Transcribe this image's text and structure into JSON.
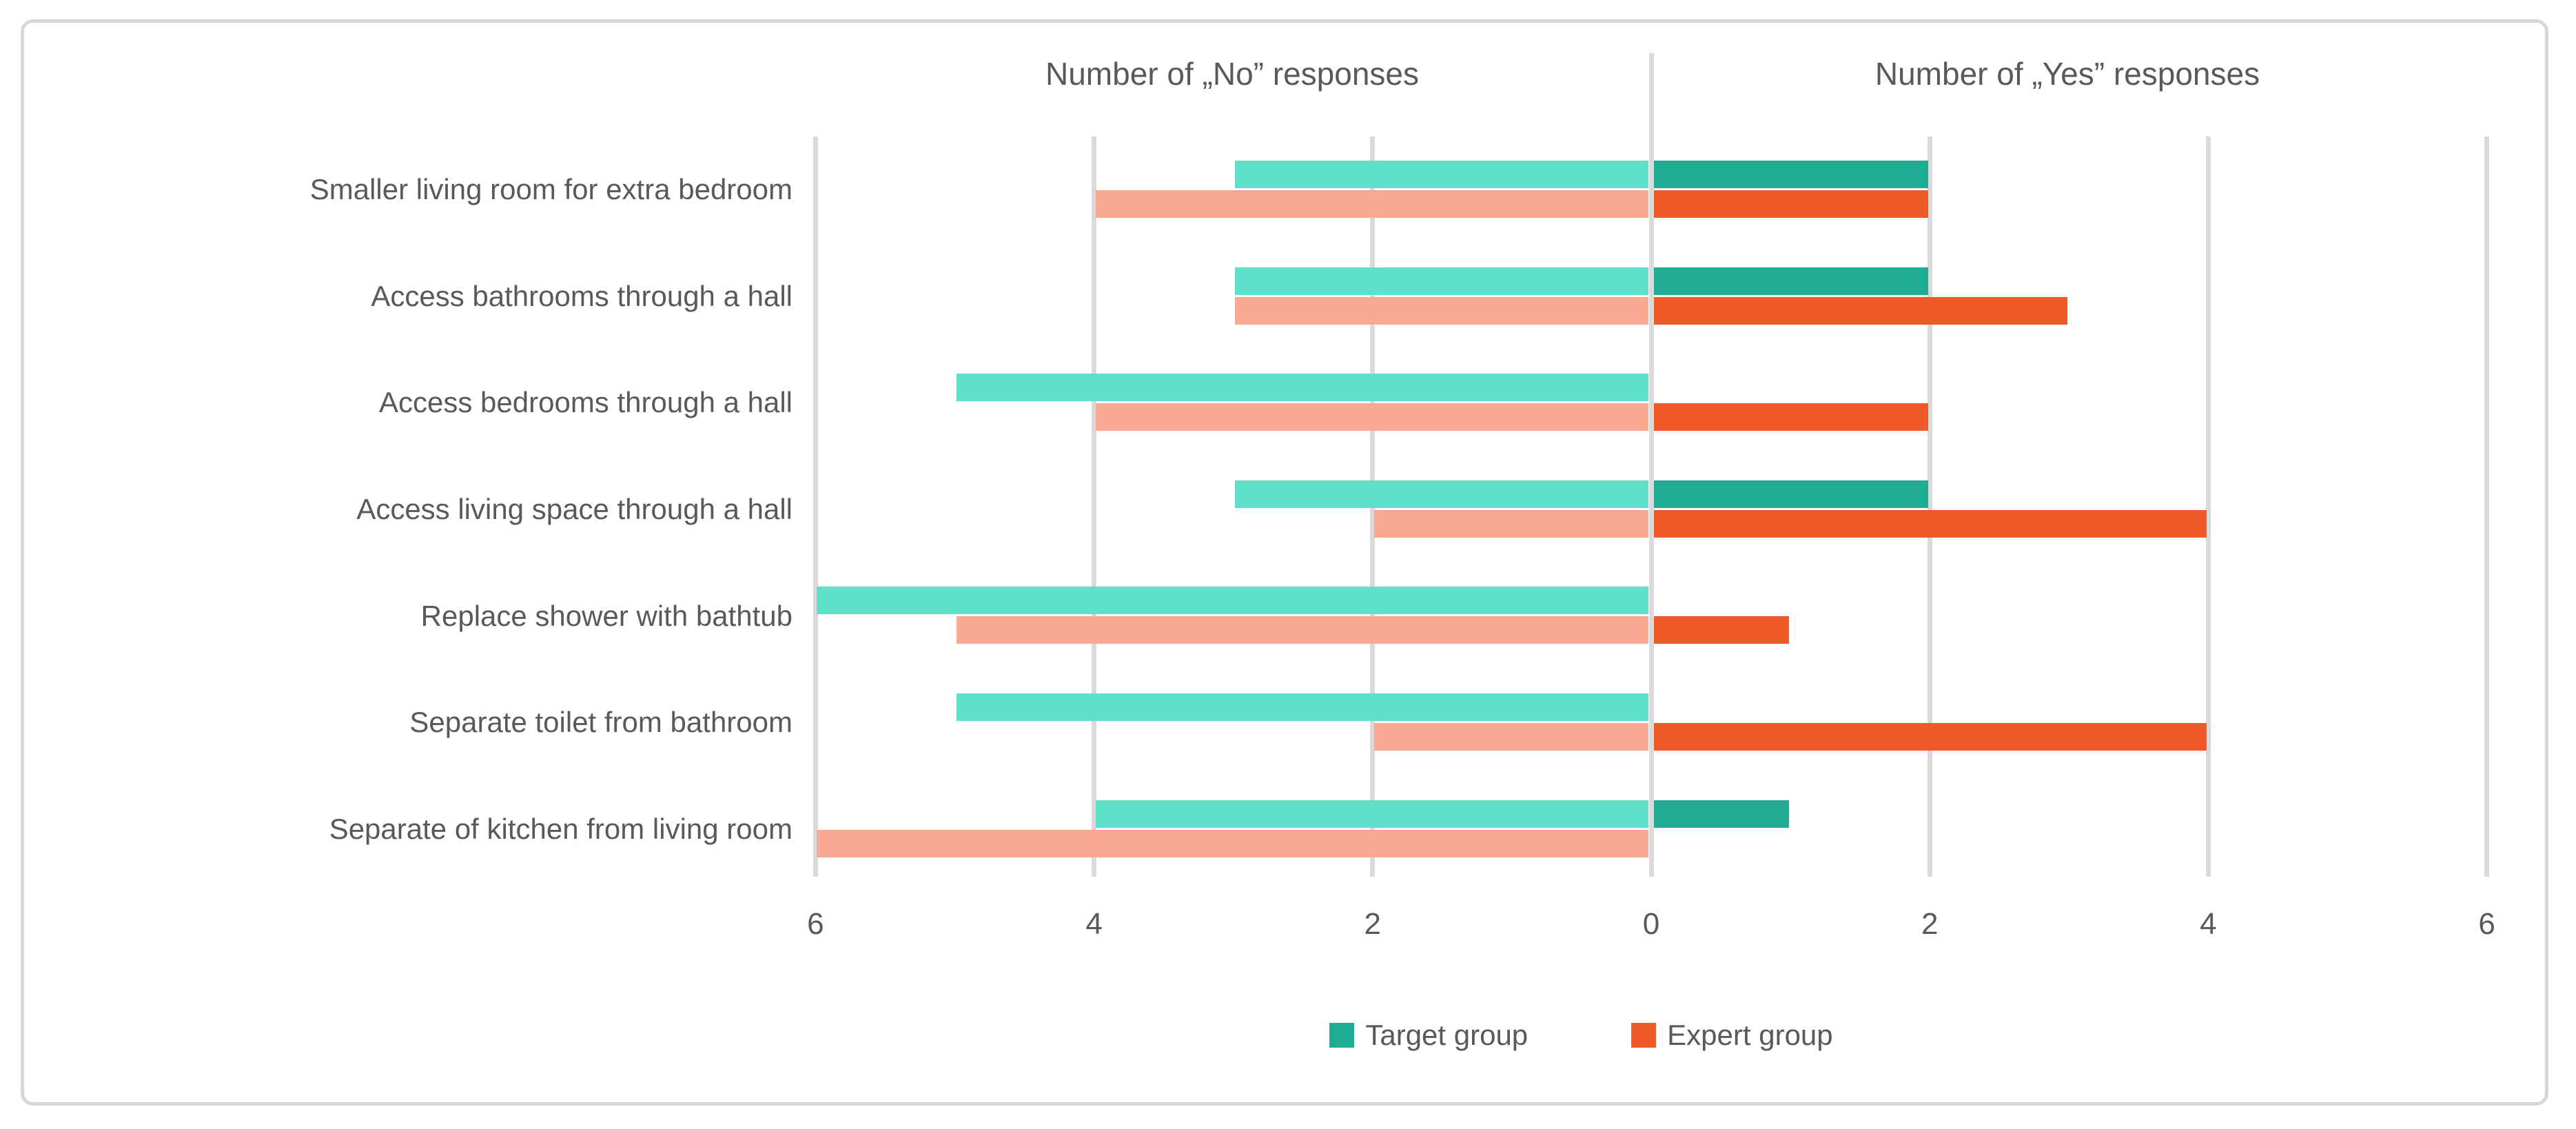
{
  "chart_data": {
    "type": "bar",
    "orientation": "horizontal-diverging",
    "title": "",
    "section_titles": {
      "left": "Number of „No” responses",
      "right": "Number of „Yes” responses"
    },
    "categories": [
      "Smaller living room for extra bedroom",
      "Access bathrooms through a hall",
      "Access bedrooms through a hall",
      "Access living space through a hall",
      "Replace shower with bathtub",
      "Separate toilet from bathroom",
      "Separate of kitchen from living room"
    ],
    "series": [
      {
        "key": "target-no",
        "name": "Target group",
        "response": "No",
        "side": "left",
        "color": "#5DE2C9",
        "values": [
          3,
          3,
          5,
          3,
          6,
          5,
          4
        ]
      },
      {
        "key": "expert-no",
        "name": "Expert group",
        "response": "No",
        "side": "left",
        "color": "#F7A993",
        "values": [
          4,
          3,
          4,
          2,
          5,
          2,
          6
        ]
      },
      {
        "key": "target-yes",
        "name": "Target group",
        "response": "Yes",
        "side": "right",
        "color": "#1EAC92",
        "values": [
          2,
          2,
          0,
          2,
          0,
          0,
          1
        ]
      },
      {
        "key": "expert-yes",
        "name": "Expert group",
        "response": "Yes",
        "side": "right",
        "color": "#F05A28",
        "values": [
          2,
          3,
          2,
          4,
          1,
          4,
          0
        ]
      }
    ],
    "x_axis": {
      "tick_values": [
        -6,
        -4,
        -2,
        0,
        2,
        4,
        6
      ],
      "tick_labels": [
        "6",
        "4",
        "2",
        "0",
        "2",
        "4",
        "6"
      ],
      "range": [
        -6,
        6
      ],
      "grid": true
    },
    "legend": {
      "position": "bottom-center",
      "entries": [
        {
          "label": "Target group",
          "color": "#1EAC92"
        },
        {
          "label": "Expert group",
          "color": "#F05A28"
        }
      ]
    },
    "colors": {
      "target_light": "#5DE2C9",
      "expert_light": "#F7A993",
      "target_dark": "#1EAC92",
      "expert_dark": "#F05A28",
      "gridline": "#D9D9D9",
      "text": "#595959"
    }
  }
}
